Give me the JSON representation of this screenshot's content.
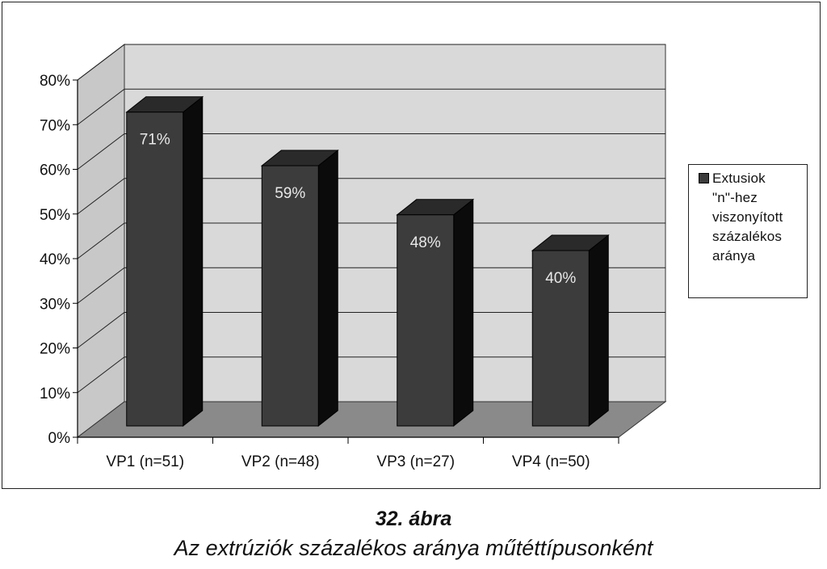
{
  "chart_data": {
    "type": "bar",
    "categories": [
      "VP1 (n=51)",
      "VP2 (n=48)",
      "VP3 (n=27)",
      "VP4 (n=50)"
    ],
    "series": [
      {
        "name": "Extusiok \"n\"-hez viszonyított százalékos aránya",
        "values": [
          71,
          59,
          48,
          40
        ]
      }
    ],
    "data_labels": [
      "71%",
      "59%",
      "48%",
      "40%"
    ],
    "y_ticks": [
      "0%",
      "10%",
      "20%",
      "30%",
      "40%",
      "50%",
      "60%",
      "70%",
      "80%"
    ],
    "ylim": [
      0,
      80
    ],
    "grid": true,
    "three_d": true,
    "legend_position": "right",
    "colors": {
      "bar_front": "#3c3c3c",
      "bar_top": "#2a2a2a",
      "bar_side": "#0b0b0b",
      "wall": "#d9d9d9",
      "floor": "#8a8a8a",
      "grid": "#222222"
    }
  },
  "legend": {
    "text": "Extusiok\n\"n\"-hez\nviszonyított\nszázalékos\naránya"
  },
  "caption": {
    "number": "32. ábra",
    "title": "Az extrúziók százalékos aránya műtéttípusonként"
  }
}
